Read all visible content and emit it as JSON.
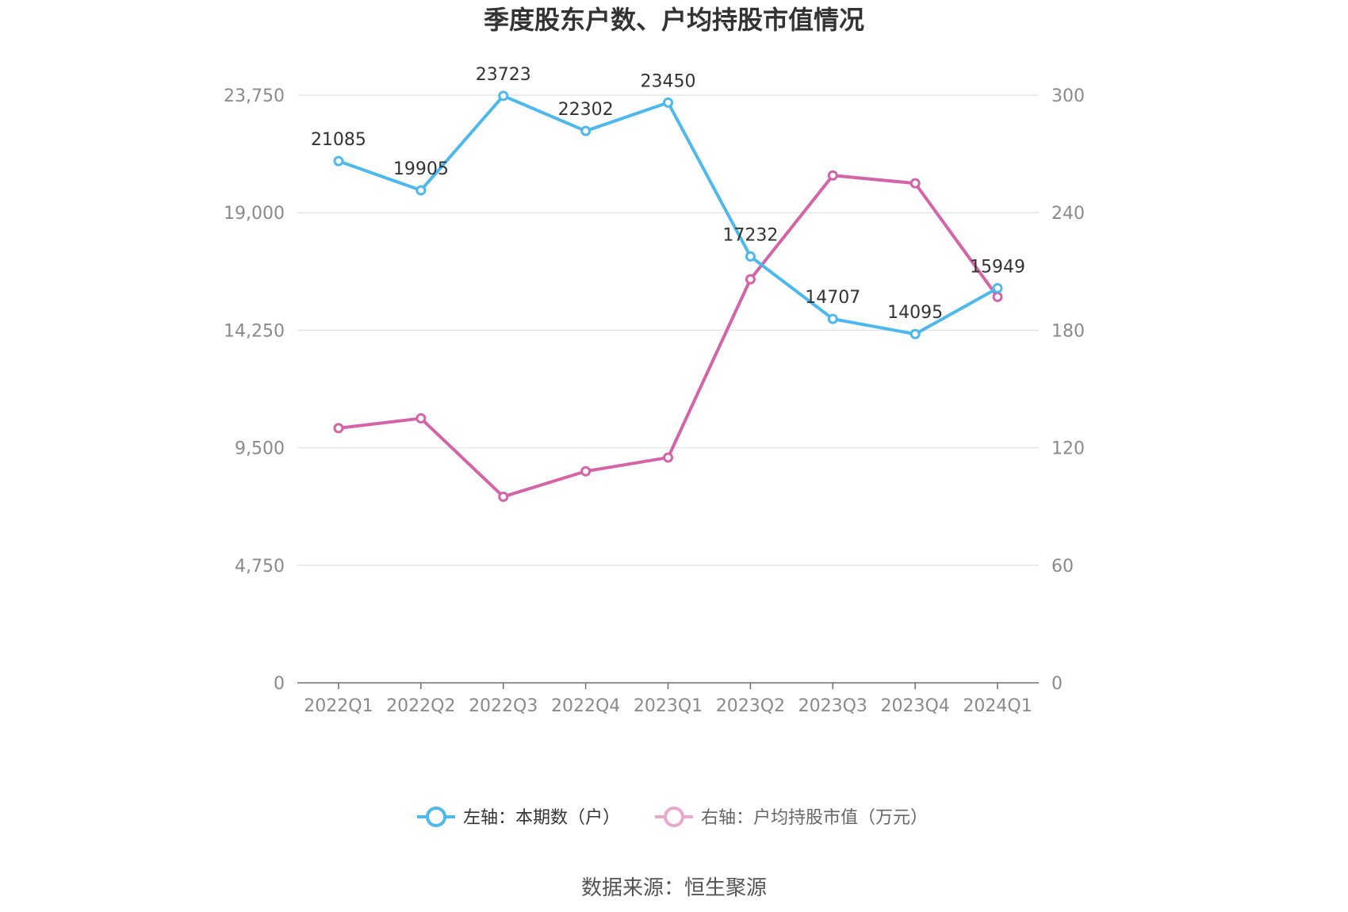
{
  "chart_data": {
    "type": "line",
    "title": "季度股东户数、户均持股市值情况",
    "categories": [
      "2022Q1",
      "2022Q2",
      "2022Q3",
      "2022Q4",
      "2023Q1",
      "2023Q2",
      "2023Q3",
      "2023Q4",
      "2024Q1"
    ],
    "y_left": {
      "ylim": [
        0,
        23750
      ],
      "ticks": [
        0,
        4750,
        9500,
        14250,
        19000,
        23750
      ],
      "tick_labels": [
        "0",
        "4,750",
        "9,500",
        "14,250",
        "19,000",
        "23,750"
      ]
    },
    "y_right": {
      "ylim": [
        0,
        300
      ],
      "ticks": [
        0,
        60,
        120,
        180,
        240,
        300
      ],
      "tick_labels": [
        "0",
        "60",
        "120",
        "180",
        "240",
        "300"
      ]
    },
    "series": [
      {
        "name": "左轴：本期数（户）",
        "axis": "left",
        "color": "#4DB8EE",
        "values": [
          21085,
          19905,
          23723,
          22302,
          23450,
          17232,
          14707,
          14095,
          15949
        ],
        "data_labels": [
          "21085",
          "19905",
          "23723",
          "22302",
          "23450",
          "17232",
          "14707",
          "14095",
          "15949"
        ]
      },
      {
        "name": "右轴：户均持股市值（万元）",
        "axis": "right",
        "color": "#D463A8",
        "values": [
          130,
          135,
          95,
          108,
          115,
          206,
          259,
          255,
          197
        ]
      }
    ],
    "grid": true,
    "legend_position": "bottom"
  },
  "legend": {
    "left_label": "左轴：本期数（户）",
    "right_label": "右轴：户均持股市值（万元）",
    "right_marker_color": "#EAA8CF"
  },
  "source": "数据来源：恒生聚源"
}
